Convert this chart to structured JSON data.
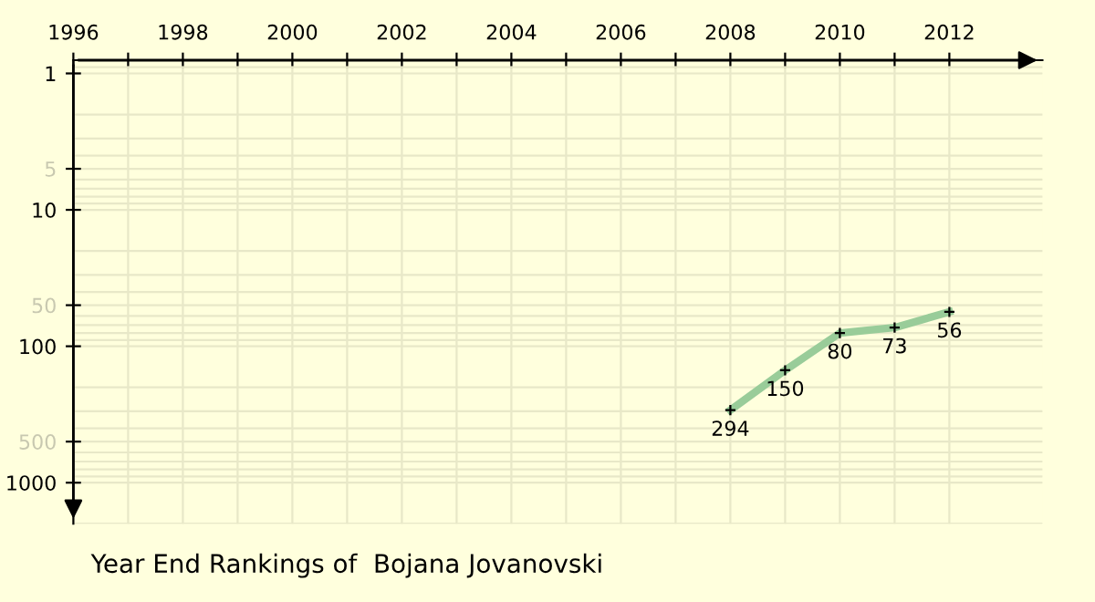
{
  "chart_data": {
    "type": "line",
    "title": "Year End Rankings of  Bojana Jovanovski",
    "x": [
      2008,
      2009,
      2010,
      2011,
      2012
    ],
    "series": [
      {
        "color": "#99cc99",
        "values": [
          294,
          150,
          80,
          73,
          56
        ]
      }
    ],
    "xlim": [
      1996,
      2013.7
    ],
    "ylim": [
      2000,
      0.8
    ],
    "log": "y",
    "xticks": [
      1996,
      {
        "value": 1997,
        "label": null
      },
      1998,
      {
        "value": 1999,
        "label": null
      },
      2000,
      {
        "value": 2001,
        "label": null
      },
      2002,
      {
        "value": 2003,
        "label": null
      },
      2004,
      {
        "value": 2005,
        "label": null
      },
      2006,
      {
        "value": 2007,
        "label": null
      },
      2008,
      {
        "value": 2009,
        "label": null
      },
      2010,
      {
        "value": 2011,
        "label": null
      },
      2012
    ],
    "yticks": [
      1,
      5,
      10,
      50,
      100,
      500,
      1000
    ],
    "grid": true,
    "marker": "cross",
    "line_style": "solid",
    "data_labels": true
  }
}
